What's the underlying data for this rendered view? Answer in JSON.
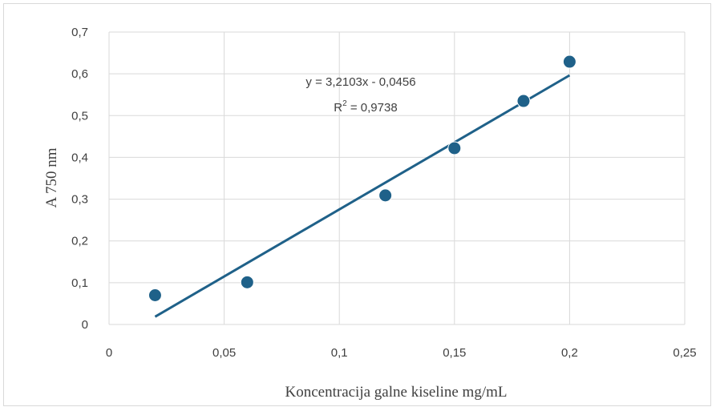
{
  "chart_data": {
    "type": "scatter",
    "title": "",
    "xlabel": "Koncentracija galne kiseline mg/mL",
    "ylabel": "A 750 nm",
    "xlim": [
      0,
      0.25
    ],
    "ylim": [
      0,
      0.7
    ],
    "x_ticks": [
      0,
      0.05,
      0.1,
      0.15,
      0.2,
      0.25
    ],
    "y_ticks": [
      0,
      0.1,
      0.2,
      0.3,
      0.4,
      0.5,
      0.6,
      0.7
    ],
    "x_tick_labels": [
      "0",
      "0,05",
      "0,1",
      "0,15",
      "0,2",
      "0,25"
    ],
    "y_tick_labels": [
      "0",
      "0,1",
      "0,2",
      "0,3",
      "0,4",
      "0,5",
      "0,6",
      "0,7"
    ],
    "grid": true,
    "series": [
      {
        "x": [
          0.02,
          0.06,
          0.12,
          0.15,
          0.18,
          0.2
        ],
        "y": [
          0.07,
          0.101,
          0.309,
          0.422,
          0.535,
          0.629
        ],
        "color": "#1F6189"
      }
    ],
    "trendline": {
      "slope": 3.2103,
      "intercept": -0.0456,
      "x_range": [
        0.02,
        0.2
      ],
      "color": "#1F6189",
      "equation": "y = 3,2103x - 0,0456",
      "r2_prefix": "R",
      "r2_exponent": "2",
      "r2_value": " = 0,9738"
    }
  }
}
